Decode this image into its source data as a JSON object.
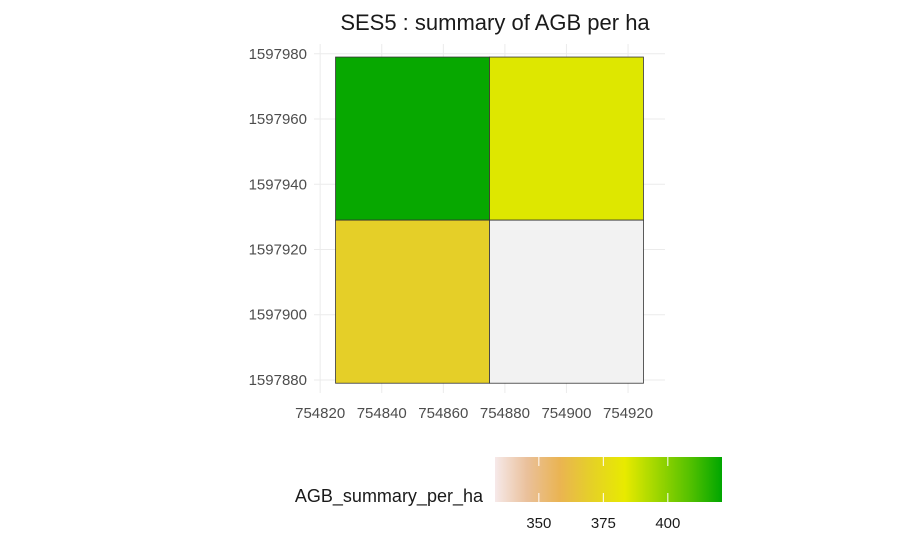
{
  "chart_data": {
    "type": "heatmap",
    "title": "SES5 : summary of AGB per ha",
    "xlabel": "",
    "ylabel": "",
    "x_ticks": [
      754820,
      754840,
      754860,
      754880,
      754900,
      754920
    ],
    "y_ticks": [
      1597880,
      1597900,
      1597920,
      1597940,
      1597960,
      1597980
    ],
    "xlim": [
      754818,
      754932
    ],
    "ylim": [
      1597876,
      1597983
    ],
    "tiles": [
      {
        "xmin": 754825,
        "xmax": 754875,
        "ymin": 1597929,
        "ymax": 1597979,
        "value": 420
      },
      {
        "xmin": 754875,
        "xmax": 754925,
        "ymin": 1597929,
        "ymax": 1597979,
        "value": 385
      },
      {
        "xmin": 754825,
        "xmax": 754875,
        "ymin": 1597879,
        "ymax": 1597929,
        "value": 370
      },
      {
        "xmin": 754875,
        "xmax": 754925,
        "ymin": 1597879,
        "ymax": 1597929,
        "value": null
      }
    ],
    "na_color": "#f2f2f2",
    "legend": {
      "title": "AGB_summary_per_ha",
      "position": "bottom",
      "range": [
        333,
        421
      ],
      "ticks": [
        350,
        375,
        400
      ],
      "colors": [
        "#f6e9e9",
        "#eac09a",
        "#eab452",
        "#e5d126",
        "#e8ea00",
        "#9ed600",
        "#55c100",
        "#00a600"
      ]
    },
    "grid": true
  }
}
